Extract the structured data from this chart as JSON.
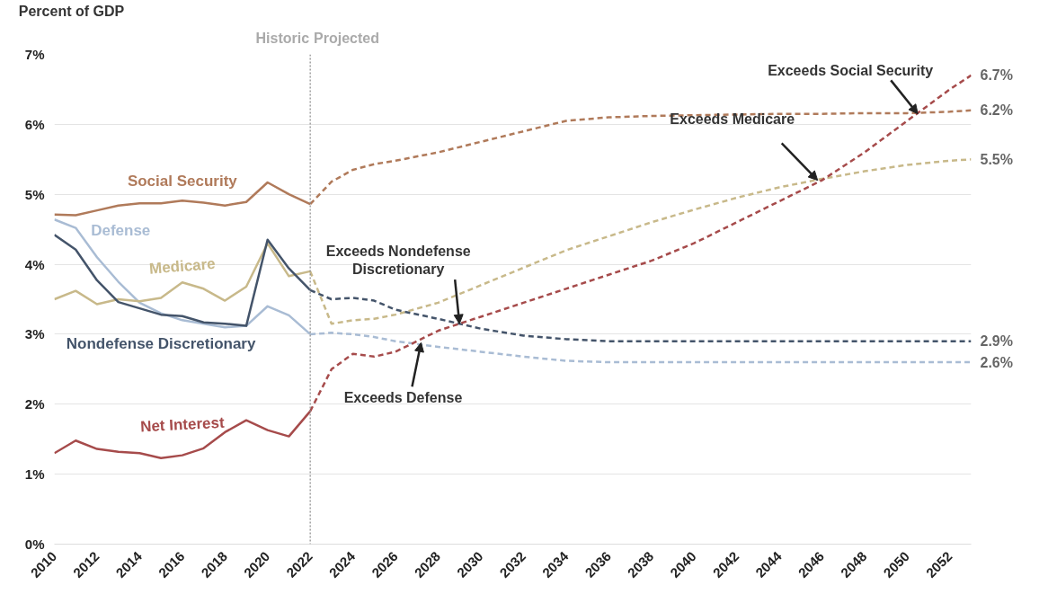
{
  "chart_data": {
    "type": "line",
    "ylabel": "Percent of GDP",
    "xlim": [
      2010,
      2053
    ],
    "xticks": [
      2010,
      2012,
      2014,
      2016,
      2018,
      2020,
      2022,
      2024,
      2026,
      2028,
      2030,
      2032,
      2034,
      2036,
      2038,
      2040,
      2042,
      2044,
      2046,
      2048,
      2050,
      2052
    ],
    "ylim": [
      0,
      7
    ],
    "yticks": [
      {
        "value": 0,
        "label": "0%"
      },
      {
        "value": 1,
        "label": "1%"
      },
      {
        "value": 2,
        "label": "2%"
      },
      {
        "value": 3,
        "label": "3%"
      },
      {
        "value": 4,
        "label": "4%"
      },
      {
        "value": 5,
        "label": "5%"
      },
      {
        "value": 6,
        "label": "6%"
      },
      {
        "value": 7,
        "label": "7%"
      }
    ],
    "grid": "y",
    "legend": false,
    "marker": "none",
    "series": [
      {
        "name": "Social Security",
        "color": "#b07a5a",
        "line_style": "solid",
        "x": [
          2010,
          2011,
          2012,
          2013,
          2014,
          2015,
          2016,
          2017,
          2018,
          2019,
          2020,
          2021,
          2022
        ],
        "values": [
          4.71,
          4.7,
          4.77,
          4.84,
          4.87,
          4.87,
          4.91,
          4.88,
          4.84,
          4.89,
          5.17,
          5.0,
          4.86
        ]
      },
      {
        "name": "Defense",
        "color": "#a9bcd4",
        "line_style": "solid",
        "x": [
          2010,
          2011,
          2012,
          2013,
          2014,
          2015,
          2016,
          2017,
          2018,
          2019,
          2020,
          2021,
          2022
        ],
        "values": [
          4.64,
          4.52,
          4.1,
          3.75,
          3.45,
          3.3,
          3.2,
          3.15,
          3.1,
          3.12,
          3.4,
          3.27,
          3.0
        ]
      },
      {
        "name": "Medicare",
        "color": "#c8b98a",
        "line_style": "solid",
        "x": [
          2010,
          2011,
          2012,
          2013,
          2014,
          2015,
          2016,
          2017,
          2018,
          2019,
          2020,
          2021,
          2022
        ],
        "values": [
          3.5,
          3.62,
          3.43,
          3.5,
          3.47,
          3.52,
          3.74,
          3.65,
          3.48,
          3.68,
          4.3,
          3.83,
          3.9
        ]
      },
      {
        "name": "Nondefense Discretionary",
        "color": "#44546a",
        "line_style": "solid",
        "x": [
          2010,
          2011,
          2012,
          2013,
          2014,
          2015,
          2016,
          2017,
          2018,
          2019,
          2020,
          2021,
          2022
        ],
        "values": [
          4.42,
          4.21,
          3.77,
          3.46,
          3.37,
          3.28,
          3.26,
          3.17,
          3.15,
          3.12,
          4.35,
          3.94,
          3.63
        ]
      },
      {
        "name": "Net Interest",
        "color": "#a64b4b",
        "line_style": "solid",
        "x": [
          2010,
          2011,
          2012,
          2013,
          2014,
          2015,
          2016,
          2017,
          2018,
          2019,
          2020,
          2021,
          2022
        ],
        "values": [
          1.3,
          1.48,
          1.36,
          1.32,
          1.3,
          1.23,
          1.27,
          1.37,
          1.6,
          1.77,
          1.63,
          1.54,
          1.9
        ]
      },
      {
        "color": "#b07a5a",
        "line_style": "dashed",
        "x": [
          2022,
          2023,
          2024,
          2025,
          2026,
          2028,
          2030,
          2032,
          2034,
          2036,
          2038,
          2040,
          2042,
          2044,
          2046,
          2048,
          2050,
          2052,
          2053
        ],
        "values": [
          4.86,
          5.18,
          5.35,
          5.43,
          5.48,
          5.6,
          5.75,
          5.9,
          6.05,
          6.1,
          6.12,
          6.13,
          6.14,
          6.15,
          6.15,
          6.16,
          6.16,
          6.18,
          6.2
        ],
        "value_labels": [
          null,
          null,
          null,
          null,
          null,
          null,
          null,
          null,
          null,
          null,
          null,
          null,
          null,
          null,
          null,
          null,
          null,
          null,
          "6.2%"
        ]
      },
      {
        "color": "#a9bcd4",
        "line_style": "dashed",
        "x": [
          2022,
          2023,
          2024,
          2025,
          2026,
          2028,
          2030,
          2032,
          2034,
          2036,
          2038,
          2040,
          2042,
          2044,
          2046,
          2048,
          2050,
          2052,
          2053
        ],
        "values": [
          3.0,
          3.02,
          3.0,
          2.96,
          2.9,
          2.82,
          2.75,
          2.68,
          2.62,
          2.6,
          2.6,
          2.6,
          2.6,
          2.6,
          2.6,
          2.6,
          2.6,
          2.6,
          2.6
        ],
        "value_labels": [
          null,
          null,
          null,
          null,
          null,
          null,
          null,
          null,
          null,
          null,
          null,
          null,
          null,
          null,
          null,
          null,
          null,
          null,
          "2.6%"
        ]
      },
      {
        "color": "#c8b98a",
        "line_style": "dashed",
        "x": [
          2022,
          2023,
          2024,
          2025,
          2026,
          2028,
          2030,
          2032,
          2034,
          2036,
          2038,
          2040,
          2042,
          2044,
          2046,
          2048,
          2050,
          2052,
          2053
        ],
        "values": [
          3.9,
          3.15,
          3.2,
          3.22,
          3.28,
          3.45,
          3.7,
          3.95,
          4.2,
          4.4,
          4.6,
          4.78,
          4.95,
          5.1,
          5.22,
          5.33,
          5.42,
          5.48,
          5.5
        ],
        "value_labels": [
          null,
          null,
          null,
          null,
          null,
          null,
          null,
          null,
          null,
          null,
          null,
          null,
          null,
          null,
          null,
          null,
          null,
          null,
          "5.5%"
        ]
      },
      {
        "color": "#44546a",
        "line_style": "dashed",
        "x": [
          2022,
          2023,
          2024,
          2025,
          2026,
          2028,
          2030,
          2032,
          2034,
          2036,
          2038,
          2040,
          2042,
          2044,
          2046,
          2048,
          2050,
          2052,
          2053
        ],
        "values": [
          3.63,
          3.5,
          3.52,
          3.48,
          3.35,
          3.22,
          3.08,
          2.98,
          2.93,
          2.9,
          2.9,
          2.9,
          2.9,
          2.9,
          2.9,
          2.9,
          2.9,
          2.9,
          2.9
        ],
        "value_labels": [
          null,
          null,
          null,
          null,
          null,
          null,
          null,
          null,
          null,
          null,
          null,
          null,
          null,
          null,
          null,
          null,
          null,
          null,
          "2.9%"
        ]
      },
      {
        "color": "#a64b4b",
        "line_style": "dashed",
        "x": [
          2022,
          2023,
          2024,
          2025,
          2026,
          2028,
          2030,
          2032,
          2034,
          2036,
          2038,
          2040,
          2042,
          2044,
          2046,
          2048,
          2050,
          2052,
          2053
        ],
        "values": [
          1.9,
          2.5,
          2.72,
          2.68,
          2.75,
          3.05,
          3.25,
          3.45,
          3.65,
          3.85,
          4.05,
          4.3,
          4.6,
          4.9,
          5.2,
          5.6,
          6.05,
          6.5,
          6.7
        ],
        "value_labels": [
          null,
          null,
          null,
          null,
          null,
          null,
          null,
          null,
          null,
          null,
          null,
          null,
          null,
          null,
          null,
          null,
          null,
          null,
          "6.7%"
        ]
      }
    ],
    "ref_lines": [
      {
        "axis": "x",
        "value": 2022,
        "color": "#888888",
        "line_style": "dotted"
      }
    ],
    "annotations": [
      "Historic",
      "Projected",
      {
        "text": "Exceeds Nondefense\nDiscretionary",
        "x": 2029,
        "y": 3.15
      },
      {
        "text": "Exceeds Defense",
        "x": 2027.2,
        "y": 2.88
      },
      {
        "text": "Exceeds Medicare",
        "x": 2045.8,
        "y": 5.2
      },
      {
        "text": "Exceeds Social Security",
        "x": 2050.5,
        "y": 6.15
      }
    ]
  }
}
